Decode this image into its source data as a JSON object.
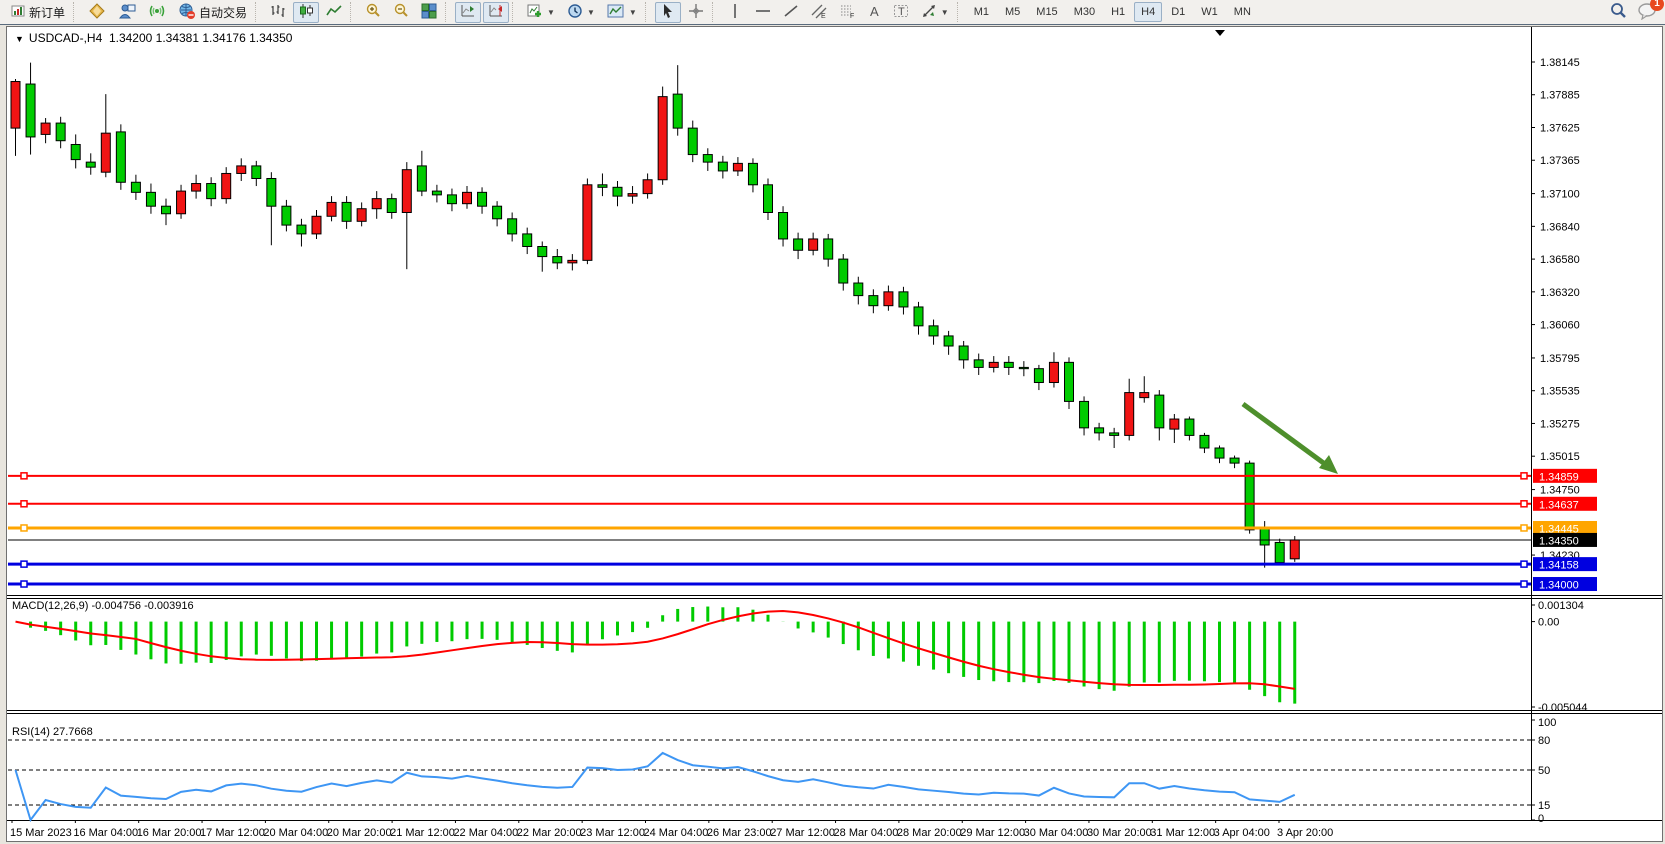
{
  "toolbar": {
    "new_order_label": "新订单",
    "autotrade_label": "自动交易",
    "buttons": [
      {
        "name": "new-order-button",
        "icon": "new-order-icon",
        "label_key": "new_order_label"
      },
      {
        "sep": true
      },
      {
        "name": "one-click-button",
        "icon": "diamond-icon"
      },
      {
        "name": "market-watch-button",
        "icon": "trader-icon"
      },
      {
        "name": "signals-button",
        "icon": "signal-icon"
      },
      {
        "name": "autotrade-button",
        "icon": "autotrade-icon",
        "label_key": "autotrade_label"
      },
      {
        "sep": true
      },
      {
        "name": "chart-bars-button",
        "icon": "bar-chart-icon"
      },
      {
        "name": "chart-candles-button",
        "icon": "candlestick-icon",
        "active": true
      },
      {
        "name": "chart-line-button",
        "icon": "line-chart-icon"
      },
      {
        "sep": true
      },
      {
        "name": "zoom-in-button",
        "icon": "zoom-in-icon"
      },
      {
        "name": "zoom-out-button",
        "icon": "zoom-out-icon"
      },
      {
        "name": "tile-windows-button",
        "icon": "tile-windows-icon"
      },
      {
        "sep": true
      },
      {
        "name": "auto-scroll-button",
        "icon": "auto-scroll-icon",
        "active": true
      },
      {
        "name": "chart-shift-button",
        "icon": "chart-shift-icon",
        "active": true
      },
      {
        "sep": true
      },
      {
        "name": "new-chart-button",
        "icon": "new-chart-icon",
        "dropdown": true
      },
      {
        "name": "periods-button",
        "icon": "clock-icon",
        "dropdown": true
      },
      {
        "name": "templates-button",
        "icon": "template-icon",
        "dropdown": true
      },
      {
        "sep": true
      },
      {
        "name": "cursor-button",
        "icon": "cursor-icon",
        "active": true
      },
      {
        "name": "crosshair-button",
        "icon": "crosshair-icon"
      },
      {
        "sep": true
      },
      {
        "name": "vline-button",
        "icon": "vline-icon"
      },
      {
        "name": "hline-button",
        "icon": "hline-icon"
      },
      {
        "name": "trendline-button",
        "icon": "trendline-icon"
      },
      {
        "name": "channel-button",
        "icon": "channel-icon"
      },
      {
        "name": "fibonacci-button",
        "icon": "fibonacci-icon"
      },
      {
        "name": "text-button",
        "icon": "text-icon"
      },
      {
        "name": "label-button",
        "icon": "label-icon"
      },
      {
        "name": "arrows-button",
        "icon": "arrows-icon",
        "dropdown": true
      },
      {
        "sep": true
      }
    ],
    "timeframes": [
      "M1",
      "M5",
      "M15",
      "M30",
      "H1",
      "H4",
      "D1",
      "W1",
      "MN"
    ],
    "active_timeframe": "H4",
    "chat_badge": "1"
  },
  "window_title": {
    "marker": "▼",
    "symbol": "USDCAD-,H4",
    "ohlc": "1.34200 1.34381 1.34176 1.34350"
  },
  "colors": {
    "candle_up": "#f01414",
    "candle_down": "#00cb00",
    "candle_border": "#000000",
    "macd_histogram": "#00cb00",
    "macd_signal": "#ff0000",
    "rsi_line": "#3e96f4",
    "arrow": "#4e8f2c",
    "level_red": "#ff0000",
    "level_orange": "#ffa500",
    "level_black": "#000000",
    "level_blue": "#0000e0"
  },
  "chart_data": {
    "type": "candlestick",
    "symbol": "USDCAD-",
    "timeframe": "H4",
    "title": "USDCAD-,H4 1.34200 1.34381 1.34176 1.34350",
    "price_ticks": [
      1.38145,
      1.37885,
      1.37625,
      1.37365,
      1.371,
      1.3684,
      1.3658,
      1.3632,
      1.3606,
      1.35795,
      1.35535,
      1.35275,
      1.35015,
      1.3475,
      1.3423
    ],
    "price_range": [
      1.3397,
      1.383
    ],
    "time_labels": [
      "15 Mar 2023",
      "16 Mar 04:00",
      "16 Mar 20:00",
      "17 Mar 12:00",
      "20 Mar 04:00",
      "20 Mar 20:00",
      "21 Mar 12:00",
      "22 Mar 04:00",
      "22 Mar 20:00",
      "23 Mar 12:00",
      "24 Mar 04:00",
      "26 Mar 23:00",
      "27 Mar 12:00",
      "28 Mar 04:00",
      "28 Mar 20:00",
      "29 Mar 12:00",
      "30 Mar 04:00",
      "30 Mar 20:00",
      "31 Mar 12:00",
      "3 Apr 04:00",
      "3 Apr 20:00"
    ],
    "levels": [
      {
        "price": 1.34859,
        "label": "1.34859",
        "color": "#ff0000",
        "width": 2,
        "handles": true
      },
      {
        "price": 1.34637,
        "label": "1.34637",
        "color": "#ff0000",
        "width": 2,
        "handles": true
      },
      {
        "price": 1.34445,
        "label": "1.34445",
        "color": "#ffa500",
        "width": 3,
        "handles": true
      },
      {
        "price": 1.3435,
        "label": "1.34350",
        "color": "#000000",
        "width": 1,
        "handles": false
      },
      {
        "price": 1.34158,
        "label": "1.34158",
        "color": "#0000e0",
        "width": 3,
        "handles": true
      },
      {
        "price": 1.34,
        "label": "1.34000",
        "color": "#0000e0",
        "width": 3,
        "handles": true
      }
    ],
    "candles": [
      [
        1.3762,
        1.3801,
        1.374,
        1.3799
      ],
      [
        1.3797,
        1.3814,
        1.3741,
        1.3755
      ],
      [
        1.3757,
        1.377,
        1.375,
        1.3766
      ],
      [
        1.3766,
        1.3771,
        1.3746,
        1.3752
      ],
      [
        1.3749,
        1.3757,
        1.373,
        1.3737
      ],
      [
        1.3735,
        1.3742,
        1.3725,
        1.3731
      ],
      [
        1.3727,
        1.3789,
        1.3723,
        1.3758
      ],
      [
        1.3759,
        1.3765,
        1.3713,
        1.3719
      ],
      [
        1.3719,
        1.3725,
        1.3705,
        1.3711
      ],
      [
        1.3711,
        1.3718,
        1.3694,
        1.37
      ],
      [
        1.37,
        1.3706,
        1.3685,
        1.3694
      ],
      [
        1.3694,
        1.3717,
        1.369,
        1.3712
      ],
      [
        1.3712,
        1.3725,
        1.3706,
        1.3718
      ],
      [
        1.3718,
        1.3723,
        1.37,
        1.3706
      ],
      [
        1.3706,
        1.3731,
        1.3702,
        1.3726
      ],
      [
        1.3726,
        1.3738,
        1.372,
        1.3732
      ],
      [
        1.3732,
        1.3736,
        1.3716,
        1.3722
      ],
      [
        1.3722,
        1.3727,
        1.3669,
        1.37
      ],
      [
        1.37,
        1.3705,
        1.368,
        1.3685
      ],
      [
        1.3685,
        1.369,
        1.3668,
        1.3678
      ],
      [
        1.3678,
        1.3697,
        1.3674,
        1.3692
      ],
      [
        1.3692,
        1.3708,
        1.3688,
        1.3703
      ],
      [
        1.3703,
        1.3708,
        1.3682,
        1.3688
      ],
      [
        1.3688,
        1.3703,
        1.3684,
        1.3698
      ],
      [
        1.3698,
        1.3712,
        1.369,
        1.3706
      ],
      [
        1.3706,
        1.371,
        1.369,
        1.3695
      ],
      [
        1.3695,
        1.3735,
        1.365,
        1.3729
      ],
      [
        1.3732,
        1.3744,
        1.3708,
        1.3712
      ],
      [
        1.3712,
        1.3717,
        1.3703,
        1.3709
      ],
      [
        1.3709,
        1.3714,
        1.3696,
        1.3702
      ],
      [
        1.3702,
        1.3716,
        1.3698,
        1.3711
      ],
      [
        1.3711,
        1.3715,
        1.3694,
        1.37
      ],
      [
        1.37,
        1.3704,
        1.3684,
        1.369
      ],
      [
        1.369,
        1.3695,
        1.3672,
        1.3678
      ],
      [
        1.3678,
        1.3683,
        1.3662,
        1.3668
      ],
      [
        1.3668,
        1.3672,
        1.3648,
        1.366
      ],
      [
        1.366,
        1.3666,
        1.365,
        1.3655
      ],
      [
        1.3655,
        1.3662,
        1.3649,
        1.3657
      ],
      [
        1.3657,
        1.3722,
        1.3654,
        1.3717
      ],
      [
        1.3717,
        1.3726,
        1.3708,
        1.3715
      ],
      [
        1.3715,
        1.372,
        1.37,
        1.3708
      ],
      [
        1.3708,
        1.3716,
        1.3702,
        1.371
      ],
      [
        1.371,
        1.3726,
        1.3706,
        1.3721
      ],
      [
        1.3721,
        1.3795,
        1.3717,
        1.3787
      ],
      [
        1.3789,
        1.3812,
        1.3756,
        1.3762
      ],
      [
        1.3762,
        1.3768,
        1.3735,
        1.3741
      ],
      [
        1.3741,
        1.3746,
        1.3728,
        1.3735
      ],
      [
        1.3735,
        1.374,
        1.3722,
        1.3728
      ],
      [
        1.3728,
        1.3739,
        1.3724,
        1.3734
      ],
      [
        1.3734,
        1.3738,
        1.3711,
        1.3717
      ],
      [
        1.3717,
        1.3722,
        1.3689,
        1.3695
      ],
      [
        1.3695,
        1.37,
        1.3668,
        1.3674
      ],
      [
        1.3674,
        1.3679,
        1.3658,
        1.3665
      ],
      [
        1.3665,
        1.3679,
        1.3661,
        1.3674
      ],
      [
        1.3674,
        1.3678,
        1.3652,
        1.3658
      ],
      [
        1.3658,
        1.3662,
        1.3633,
        1.3639
      ],
      [
        1.3639,
        1.3644,
        1.3622,
        1.3629
      ],
      [
        1.3629,
        1.3634,
        1.3615,
        1.3621
      ],
      [
        1.3621,
        1.3637,
        1.3617,
        1.3632
      ],
      [
        1.3632,
        1.3636,
        1.3614,
        1.362
      ],
      [
        1.362,
        1.3624,
        1.3598,
        1.3605
      ],
      [
        1.3605,
        1.361,
        1.359,
        1.3597
      ],
      [
        1.3597,
        1.3601,
        1.3582,
        1.3589
      ],
      [
        1.3589,
        1.3593,
        1.3571,
        1.3578
      ],
      [
        1.3578,
        1.3583,
        1.3566,
        1.3572
      ],
      [
        1.3572,
        1.3581,
        1.3568,
        1.3576
      ],
      [
        1.3576,
        1.3581,
        1.3566,
        1.3572
      ],
      [
        1.3572,
        1.3577,
        1.3565,
        1.3571
      ],
      [
        1.3571,
        1.3574,
        1.3554,
        1.356
      ],
      [
        1.356,
        1.3584,
        1.3556,
        1.3576
      ],
      [
        1.3576,
        1.358,
        1.3539,
        1.3545
      ],
      [
        1.3545,
        1.3549,
        1.3518,
        1.3524
      ],
      [
        1.3524,
        1.3528,
        1.3514,
        1.352
      ],
      [
        1.352,
        1.3524,
        1.3508,
        1.3518
      ],
      [
        1.3518,
        1.3563,
        1.3514,
        1.3552
      ],
      [
        1.3548,
        1.3565,
        1.3544,
        1.3552
      ],
      [
        1.355,
        1.3554,
        1.3514,
        1.3524
      ],
      [
        1.3523,
        1.3535,
        1.3512,
        1.3531
      ],
      [
        1.3531,
        1.3533,
        1.3514,
        1.3518
      ],
      [
        1.3518,
        1.352,
        1.3504,
        1.3508
      ],
      [
        1.3508,
        1.351,
        1.3496,
        1.35
      ],
      [
        1.35,
        1.3502,
        1.3492,
        1.3496
      ],
      [
        1.3496,
        1.3498,
        1.344,
        1.3443
      ],
      [
        1.3445,
        1.345,
        1.3413,
        1.3431
      ],
      [
        1.3433,
        1.3436,
        1.3415,
        1.3417
      ],
      [
        1.342,
        1.34381,
        1.34176,
        1.3435
      ]
    ],
    "indicators": {
      "macd": {
        "label": "MACD(12,26,9) -0.004756 -0.003916",
        "params": [
          12,
          26,
          9
        ],
        "last_main": -0.004756,
        "last_signal": -0.003916,
        "scale_ticks": [
          "0.001304",
          "0.00",
          "-0.005044"
        ],
        "scale_max": 0.001304,
        "scale_min": -0.005044
      },
      "rsi": {
        "label": "RSI(14) 27.7668",
        "period": 14,
        "last_value": 27.7668,
        "scale_ticks": [
          100,
          80,
          50,
          15,
          0
        ],
        "dashed_levels": [
          80,
          50,
          15
        ]
      }
    },
    "annotations": [
      {
        "type": "arrow",
        "color": "#4e8f2c",
        "from_price_x": "2023-03-31",
        "note": "downward-trend-arrow"
      }
    ]
  }
}
